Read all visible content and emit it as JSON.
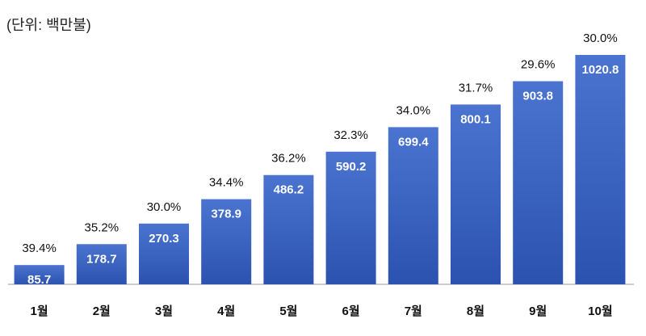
{
  "chart_data": {
    "type": "bar",
    "title": "(단위: 백만불)",
    "categories": [
      "1월",
      "2월",
      "3월",
      "4월",
      "5월",
      "6월",
      "7월",
      "8월",
      "9월",
      "10월"
    ],
    "values": [
      85.7,
      178.7,
      270.3,
      378.9,
      486.2,
      590.2,
      699.4,
      800.1,
      903.8,
      1020.8
    ],
    "annotations": [
      "39.4%",
      "35.2%",
      "30.0%",
      "34.4%",
      "36.2%",
      "32.3%",
      "34.0%",
      "31.7%",
      "29.6%",
      "30.0%"
    ],
    "color": "#3e64c4"
  }
}
